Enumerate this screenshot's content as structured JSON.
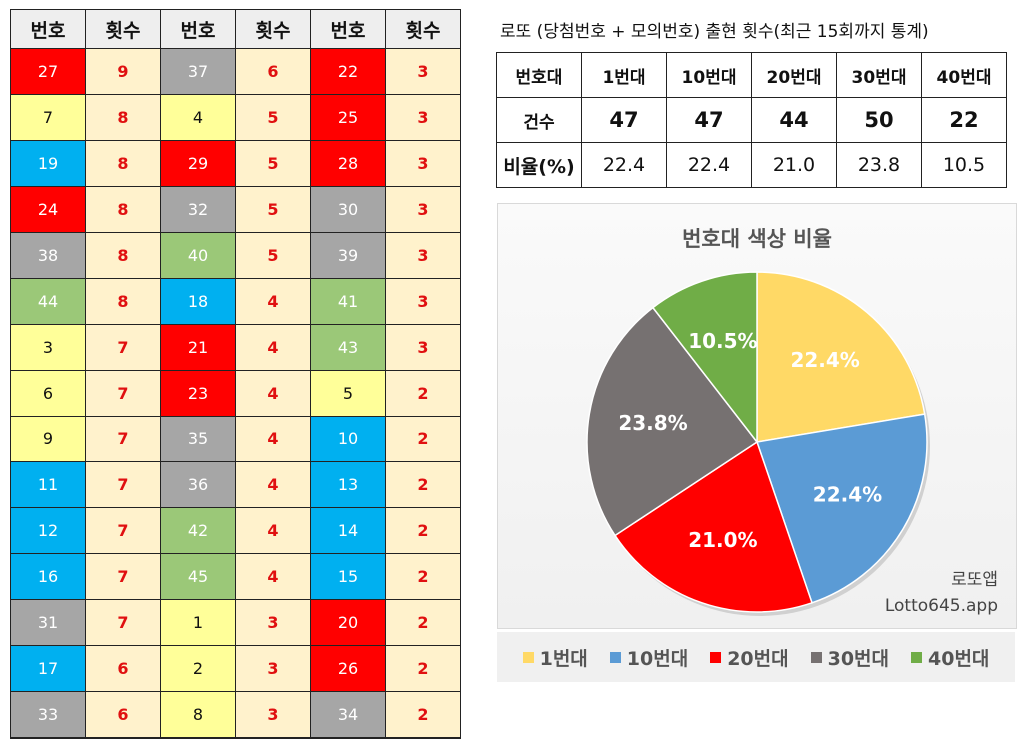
{
  "colors": {
    "1": "#ffff99",
    "10": "#00b0f0",
    "20": "#ff0000",
    "30": "#a6a6a6",
    "40": "#9bc878",
    "count_bg": "#fff2cc",
    "count_text": "#e01010",
    "pie": [
      "#ffd966",
      "#5b9bd5",
      "#ff0000",
      "#767171",
      "#70ad47"
    ]
  },
  "table": {
    "headers": [
      "번호",
      "횟수",
      "번호",
      "횟수",
      "번호",
      "횟수"
    ],
    "rows": [
      [
        [
          "27",
          "9"
        ],
        [
          "37",
          "6"
        ],
        [
          "22",
          "3"
        ]
      ],
      [
        [
          "7",
          "8"
        ],
        [
          "4",
          "5"
        ],
        [
          "25",
          "3"
        ]
      ],
      [
        [
          "19",
          "8"
        ],
        [
          "29",
          "5"
        ],
        [
          "28",
          "3"
        ]
      ],
      [
        [
          "24",
          "8"
        ],
        [
          "32",
          "5"
        ],
        [
          "30",
          "3"
        ]
      ],
      [
        [
          "38",
          "8"
        ],
        [
          "40",
          "5"
        ],
        [
          "39",
          "3"
        ]
      ],
      [
        [
          "44",
          "8"
        ],
        [
          "18",
          "4"
        ],
        [
          "41",
          "3"
        ]
      ],
      [
        [
          "3",
          "7"
        ],
        [
          "21",
          "4"
        ],
        [
          "43",
          "3"
        ]
      ],
      [
        [
          "6",
          "7"
        ],
        [
          "23",
          "4"
        ],
        [
          "5",
          "2"
        ]
      ],
      [
        [
          "9",
          "7"
        ],
        [
          "35",
          "4"
        ],
        [
          "10",
          "2"
        ]
      ],
      [
        [
          "11",
          "7"
        ],
        [
          "36",
          "4"
        ],
        [
          "13",
          "2"
        ]
      ],
      [
        [
          "12",
          "7"
        ],
        [
          "42",
          "4"
        ],
        [
          "14",
          "2"
        ]
      ],
      [
        [
          "16",
          "7"
        ],
        [
          "45",
          "4"
        ],
        [
          "15",
          "2"
        ]
      ],
      [
        [
          "31",
          "7"
        ],
        [
          "1",
          "3"
        ],
        [
          "20",
          "2"
        ]
      ],
      [
        [
          "17",
          "6"
        ],
        [
          "2",
          "3"
        ],
        [
          "26",
          "2"
        ]
      ],
      [
        [
          "33",
          "6"
        ],
        [
          "8",
          "3"
        ],
        [
          "34",
          "2"
        ]
      ]
    ]
  },
  "stats": {
    "title": "로또 (당첨번호 + 모의번호) 출현 횟수(최근 15회까지 통계)",
    "row_headers": [
      "번호대",
      "건수",
      "비율(%)"
    ],
    "columns": [
      "1번대",
      "10번대",
      "20번대",
      "30번대",
      "40번대"
    ],
    "counts": [
      "47",
      "47",
      "44",
      "50",
      "22"
    ],
    "ratios": [
      "22.4",
      "22.4",
      "21.0",
      "23.8",
      "10.5"
    ]
  },
  "chart_data": {
    "type": "pie",
    "title": "번호대 색상 비율",
    "categories": [
      "1번대",
      "10번대",
      "20번대",
      "30번대",
      "40번대"
    ],
    "values": [
      22.4,
      22.4,
      21.0,
      23.8,
      10.5
    ],
    "value_labels": [
      "22.4%",
      "22.4%",
      "21.0%",
      "23.8%",
      "10.5%"
    ],
    "legend_position": "bottom"
  },
  "watermark": {
    "line1": "로또앱",
    "line2": "Lotto645.app"
  }
}
